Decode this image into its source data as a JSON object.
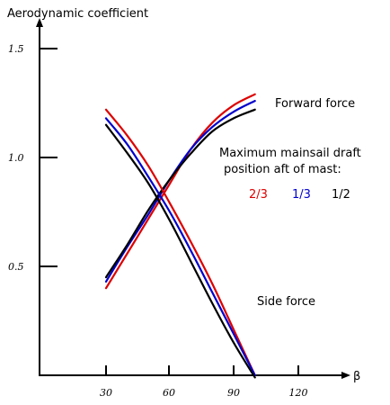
{
  "chart_data": {
    "type": "line",
    "ylabel": "Aerodynamic coefficient",
    "xlabel": "β",
    "xlim": [
      13,
      140
    ],
    "ylim": [
      0,
      1.6
    ],
    "x_ticks": [
      30,
      60,
      90,
      120
    ],
    "y_ticks": [
      0.5,
      1.0,
      1.5
    ],
    "x_tick_labels": [
      "30",
      "60",
      "90",
      "120"
    ],
    "y_tick_labels": [
      "0.5",
      "1.0",
      "1.5"
    ],
    "grid": false,
    "legend_title": "Maximum mainsail draft position aft of mast:",
    "legend_title_lines": [
      "Maximum mainsail draft",
      "position aft of mast:"
    ],
    "annotations": {
      "forward": "Forward force",
      "side": "Side force"
    },
    "series": [
      {
        "name": "2/3",
        "color": "#dd0000",
        "group": "forward",
        "x": [
          30,
          40,
          50,
          60,
          70,
          80,
          90,
          100
        ],
        "y": [
          0.4,
          0.56,
          0.72,
          0.88,
          1.04,
          1.16,
          1.24,
          1.29
        ]
      },
      {
        "name": "1/3",
        "color": "#0000cc",
        "group": "forward",
        "x": [
          30,
          40,
          50,
          60,
          70,
          80,
          90,
          100
        ],
        "y": [
          0.43,
          0.59,
          0.74,
          0.9,
          1.04,
          1.14,
          1.21,
          1.26
        ]
      },
      {
        "name": "1/2",
        "color": "#000000",
        "group": "forward",
        "x": [
          30,
          40,
          50,
          60,
          70,
          80,
          90,
          100
        ],
        "y": [
          0.45,
          0.6,
          0.76,
          0.9,
          1.02,
          1.12,
          1.18,
          1.22
        ]
      },
      {
        "name": "2/3",
        "color": "#dd0000",
        "group": "side",
        "x": [
          30,
          40,
          50,
          60,
          70,
          80,
          90,
          100
        ],
        "y": [
          1.22,
          1.1,
          0.96,
          0.79,
          0.61,
          0.42,
          0.21,
          0.0
        ]
      },
      {
        "name": "1/3",
        "color": "#0000cc",
        "group": "side",
        "x": [
          30,
          40,
          50,
          60,
          70,
          80,
          90,
          100
        ],
        "y": [
          1.18,
          1.06,
          0.91,
          0.75,
          0.57,
          0.38,
          0.19,
          0.0
        ]
      },
      {
        "name": "1/2",
        "color": "#000000",
        "group": "side",
        "x": [
          30,
          40,
          50,
          60,
          70,
          80,
          90,
          100
        ],
        "y": [
          1.15,
          1.02,
          0.88,
          0.71,
          0.52,
          0.33,
          0.15,
          -0.01
        ]
      }
    ]
  }
}
